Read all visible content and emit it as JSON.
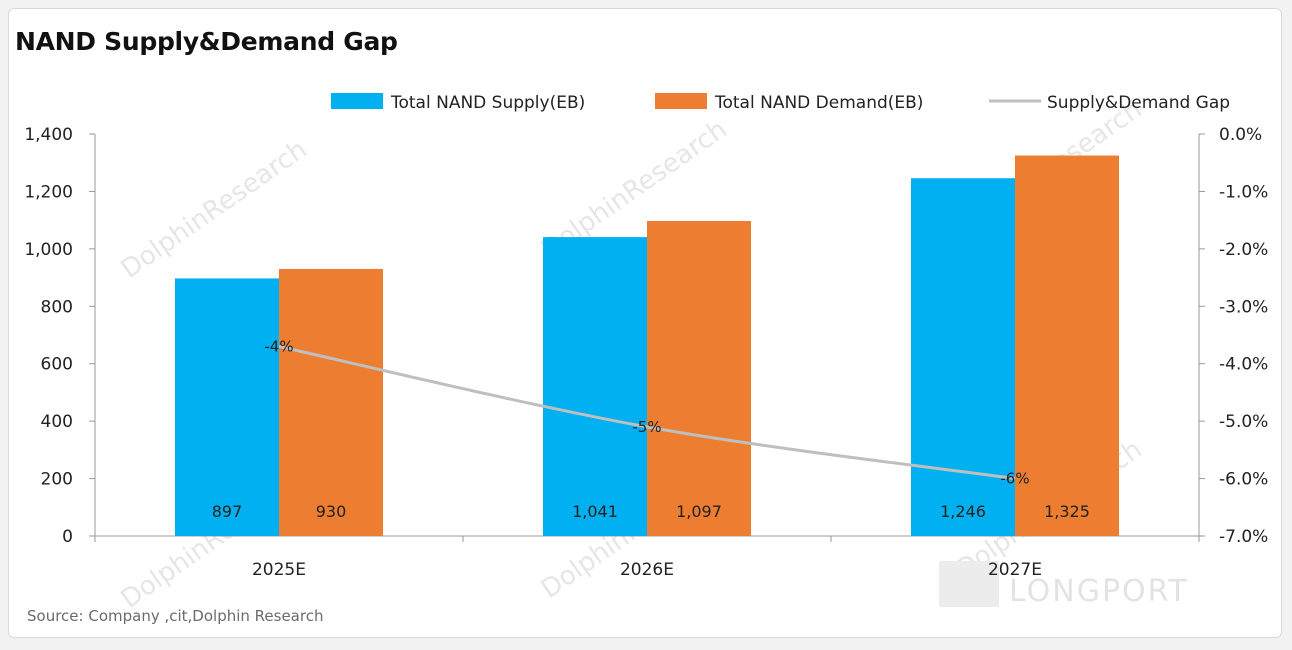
{
  "title": "NAND Supply&Demand Gap",
  "source": "Source:  Company ,cit,Dolphin  Research",
  "watermark": "DolphinResearch",
  "logo": "LONGPORT",
  "colors": {
    "supply": "#00b0f0",
    "demand": "#ed7d31",
    "gap": "#bfbfbf",
    "axis": "#999999"
  },
  "chart_data": {
    "type": "bar",
    "categories": [
      "2025E",
      "2026E",
      "2027E"
    ],
    "series": [
      {
        "name": "Total NAND Supply(EB)",
        "type": "bar",
        "axis": "left",
        "values": [
          897,
          1041,
          1246
        ],
        "labels": [
          "897",
          "1,041",
          "1,246"
        ]
      },
      {
        "name": "Total NAND Demand(EB)",
        "type": "bar",
        "axis": "left",
        "values": [
          930,
          1097,
          1325
        ],
        "labels": [
          "930",
          "1,097",
          "1,325"
        ]
      },
      {
        "name": "Supply&Demand Gap",
        "type": "line",
        "axis": "right",
        "values": [
          -3.7,
          -5.1,
          -6.0
        ],
        "labels": [
          "-4%",
          "-5%",
          "-6%"
        ]
      }
    ],
    "yleft": {
      "ylim": [
        0,
        1400
      ],
      "ticks": [
        0,
        200,
        400,
        600,
        800,
        1000,
        1200,
        1400
      ],
      "tick_labels": [
        "0",
        "200",
        "400",
        "600",
        "800",
        "1,000",
        "1,200",
        "1,400"
      ]
    },
    "yright": {
      "ylim": [
        -7.0,
        0.0
      ],
      "ticks": [
        0,
        -1,
        -2,
        -3,
        -4,
        -5,
        -6,
        -7
      ],
      "tick_labels": [
        "0.0%",
        "-1.0%",
        "-2.0%",
        "-3.0%",
        "-4.0%",
        "-5.0%",
        "-6.0%",
        "-7.0%"
      ]
    },
    "legend": "top-right",
    "grid": false
  }
}
